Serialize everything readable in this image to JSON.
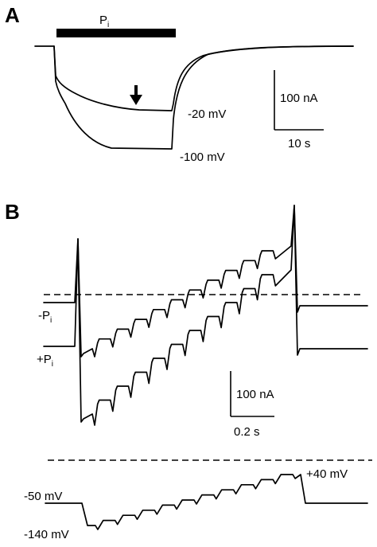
{
  "panel_a": {
    "letter": "A",
    "application_label": "P",
    "application_subscript": "i",
    "trace_labels": [
      "-20 mV",
      "-100 mV"
    ],
    "scale_current": "100 nA",
    "scale_time": "10 s"
  },
  "panel_b": {
    "letter": "B",
    "condition_labels": [
      {
        "sign": "-",
        "base": "P",
        "subscript": "i"
      },
      {
        "sign": "+",
        "base": "P",
        "subscript": "i"
      }
    ],
    "scale_current": "100 nA",
    "scale_time": "0.2 s",
    "voltage_labels": [
      "-50 mV",
      "-140 mV",
      "+40 mV"
    ]
  }
}
